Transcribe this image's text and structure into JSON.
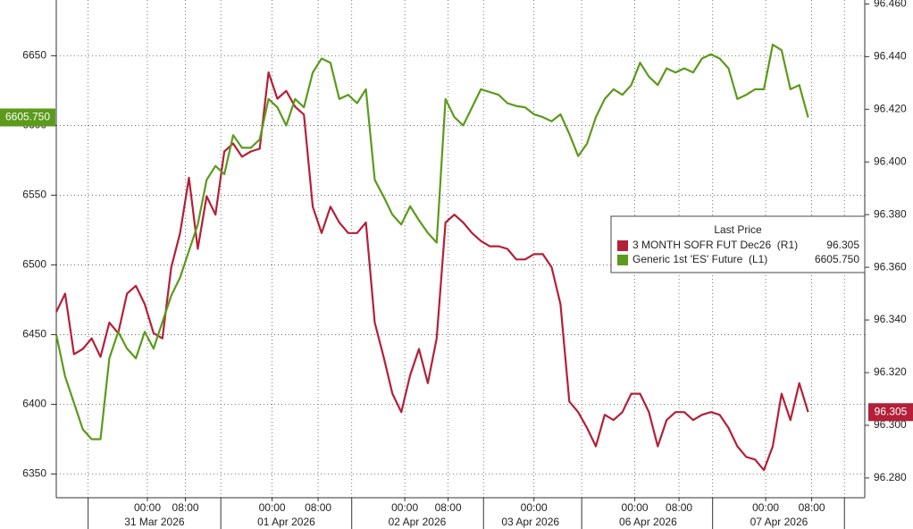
{
  "chart_data": {
    "type": "line",
    "x": [
      0,
      1,
      2,
      3,
      4,
      5,
      6,
      7,
      8,
      9,
      10,
      11,
      12,
      13,
      14,
      15,
      16,
      17,
      18,
      19,
      20,
      21,
      22,
      23,
      24,
      25,
      26,
      27,
      28,
      29,
      30,
      31,
      32,
      33,
      34,
      35,
      36,
      37,
      38,
      39,
      40,
      41,
      42,
      43,
      44,
      45,
      46,
      47,
      48,
      49,
      50,
      51,
      52,
      53,
      54,
      55,
      56,
      57,
      58,
      59,
      60,
      61,
      62,
      63,
      64,
      65,
      66,
      67,
      68,
      69,
      70,
      71,
      72,
      73,
      74,
      75,
      76,
      77,
      78,
      79,
      80,
      81,
      82,
      83,
      84,
      85
    ],
    "xlim": [
      0,
      91.4
    ],
    "xticks": [
      {
        "value": 10.3,
        "label": "00:00"
      },
      {
        "value": 14.6,
        "label": "08:00"
      },
      {
        "value": 24.4,
        "label": "00:00"
      },
      {
        "value": 29.6,
        "label": "08:00"
      },
      {
        "value": 39.4,
        "label": "00:00"
      },
      {
        "value": 44.3,
        "label": "08:00"
      },
      {
        "value": 54.0,
        "label": "00:00"
      },
      {
        "value": 65.4,
        "label": "00:00"
      },
      {
        "value": 70.4,
        "label": "08:00"
      },
      {
        "value": 80.2,
        "label": "00:00"
      },
      {
        "value": 85.4,
        "label": "08:00"
      }
    ],
    "xdates": [
      {
        "value": 11.1,
        "label": "31 Mar 2026"
      },
      {
        "value": 26.0,
        "label": "01 Apr 2026"
      },
      {
        "value": 40.8,
        "label": "02 Apr 2026"
      },
      {
        "value": 53.6,
        "label": "03 Apr 2026"
      },
      {
        "value": 66.9,
        "label": "06 Apr 2026"
      },
      {
        "value": 81.7,
        "label": "07 Apr 2026"
      }
    ],
    "xbreaks": [
      3.6,
      18.6,
      33.4,
      48.3,
      59.4,
      74.2,
      89.1
    ],
    "ylim": [
      6333,
      6690
    ],
    "yticks": [
      6350,
      6400,
      6450,
      6500,
      6550,
      6600,
      6650
    ],
    "y2lim": [
      96.2725,
      96.4615
    ],
    "y2ticks": [
      {
        "value": 96.28,
        "label": "96.280"
      },
      {
        "value": 96.3,
        "label": "96.300"
      },
      {
        "value": 96.32,
        "label": "96.320"
      },
      {
        "value": 96.34,
        "label": "96.340"
      },
      {
        "value": 96.36,
        "label": "96.360"
      },
      {
        "value": 96.38,
        "label": "96.380"
      },
      {
        "value": 96.4,
        "label": "96.400"
      },
      {
        "value": 96.42,
        "label": "96.420"
      },
      {
        "value": 96.44,
        "label": "96.440"
      },
      {
        "value": 96.46,
        "label": "96.460"
      }
    ],
    "grid": true,
    "legend_title": "Last Price",
    "series": [
      {
        "name": "3 MONTH SOFR FUT Dec26  (R1)",
        "color": "#b32038",
        "axis": "y2",
        "last_label": "96.305",
        "values": [
          96.343,
          96.35,
          96.327,
          96.329,
          96.333,
          96.326,
          96.339,
          96.335,
          96.35,
          96.353,
          96.346,
          96.335,
          96.333,
          96.36,
          96.373,
          96.394,
          96.367,
          96.387,
          96.38,
          96.404,
          96.407,
          96.402,
          96.404,
          96.405,
          96.434,
          96.424,
          96.427,
          96.421,
          96.418,
          96.383,
          96.373,
          96.383,
          96.377,
          96.373,
          96.373,
          96.377,
          96.339,
          96.326,
          96.312,
          96.305,
          96.319,
          96.329,
          96.316,
          96.333,
          96.377,
          96.38,
          96.377,
          96.373,
          96.37,
          96.368,
          96.368,
          96.367,
          96.363,
          96.363,
          96.365,
          96.365,
          96.36,
          96.346,
          96.309,
          96.305,
          96.299,
          96.292,
          96.304,
          96.302,
          96.305,
          96.312,
          96.312,
          96.305,
          96.292,
          96.302,
          96.305,
          96.305,
          96.302,
          96.304,
          96.305,
          96.304,
          96.299,
          96.292,
          96.288,
          96.287,
          96.283,
          96.292,
          96.312,
          96.302,
          96.316,
          96.305
        ]
      },
      {
        "name": "Generic 1st 'ES' Future  (L1)",
        "color": "#5b9a1b",
        "axis": "y",
        "last_label": "6605.750",
        "values": [
          6450,
          6420,
          6401,
          6382,
          6375,
          6375,
          6433,
          6452,
          6440,
          6433,
          6452,
          6440,
          6459,
          6478,
          6491,
          6510,
          6529,
          6561,
          6571,
          6565,
          6593,
          6584,
          6584,
          6590,
          6619,
          6613,
          6600,
          6619,
          6613,
          6638,
          6648,
          6645,
          6619,
          6622,
          6616,
          6626,
          6561,
          6549,
          6536,
          6529,
          6542,
          6532,
          6523,
          6516,
          6619,
          6606,
          6600,
          6613,
          6626,
          6624,
          6622,
          6616,
          6614,
          6613,
          6608,
          6606,
          6603,
          6608,
          6594,
          6578,
          6587,
          6606,
          6619,
          6626,
          6622,
          6629,
          6645,
          6635,
          6629,
          6641,
          6638,
          6641,
          6638,
          6648,
          6651,
          6648,
          6641,
          6619,
          6622,
          6626,
          6626,
          6658,
          6654,
          6626,
          6629,
          6605.75
        ]
      }
    ]
  }
}
